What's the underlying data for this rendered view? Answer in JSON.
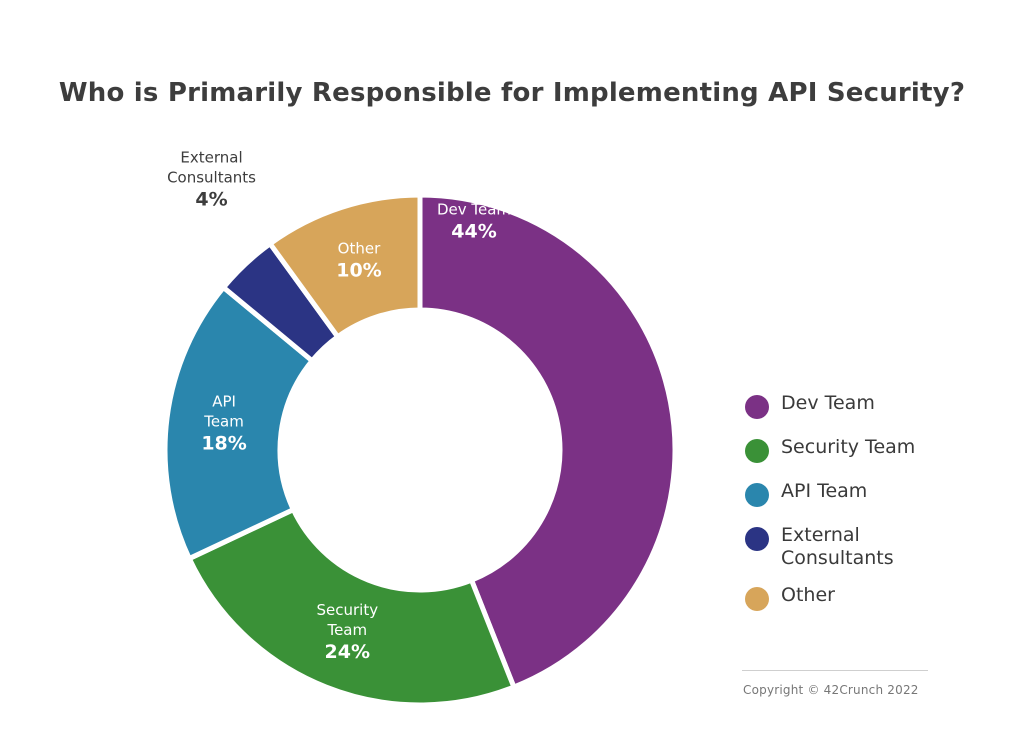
{
  "chart_data": {
    "type": "pie",
    "title": "Who is Primarily Responsible for Implementing API Security?",
    "categories": [
      "Dev Team",
      "Security Team",
      "API Team",
      "External Consultants",
      "Other"
    ],
    "values": [
      44,
      24,
      18,
      4,
      10
    ],
    "slice_labels": [
      {
        "lines": [
          "Dev Team"
        ],
        "value": "44%"
      },
      {
        "lines": [
          "Security",
          "Team"
        ],
        "value": "24%"
      },
      {
        "lines": [
          "API",
          "Team"
        ],
        "value": "18%"
      },
      {
        "lines": [
          "External",
          "Consultants"
        ],
        "value": "4%"
      },
      {
        "lines": [
          "Other"
        ],
        "value": "10%"
      }
    ],
    "colors": [
      "#7b3185",
      "#3a9137",
      "#2a86ad",
      "#2b3484",
      "#d7a55a"
    ],
    "donut": true,
    "legend_position": "right"
  },
  "legend": {
    "items": [
      {
        "label": "Dev Team"
      },
      {
        "label": "Security Team"
      },
      {
        "label": "API Team"
      },
      {
        "label": "External Consultants"
      },
      {
        "label": "Other"
      }
    ]
  },
  "footer": {
    "copyright": "Copyright © 42Crunch 2022"
  }
}
